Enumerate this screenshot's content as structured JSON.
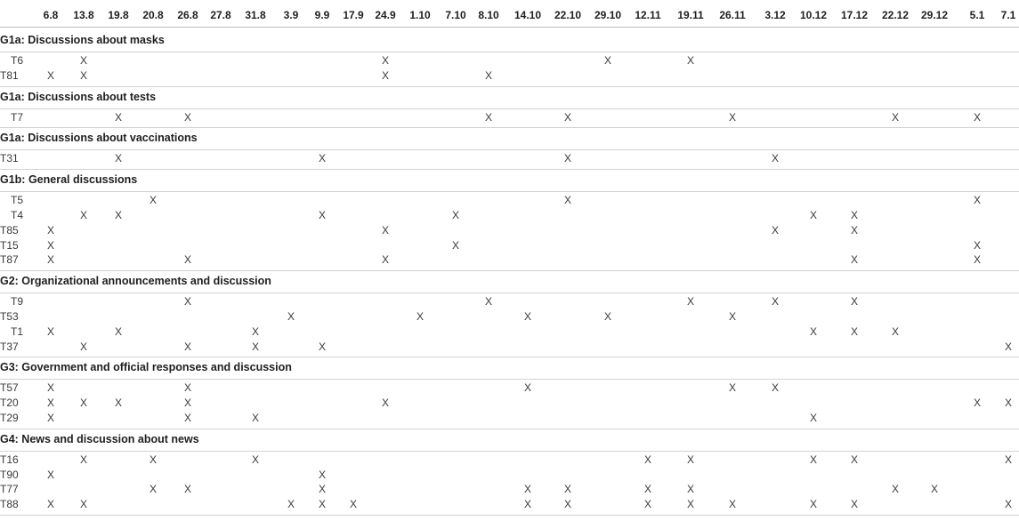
{
  "columns": [
    "6.8",
    "13.8",
    "19.8",
    "20.8",
    "26.8",
    "27.8",
    "31.8",
    "3.9",
    "9.9",
    "17.9",
    "24.9",
    "1.10",
    "7.10",
    "8.10",
    "14.10",
    "22.10",
    "29.10",
    "12.11",
    "19.11",
    "26.11",
    "3.12",
    "10.12",
    "17.12",
    "22.12",
    "29.12",
    "5.1",
    "7.1"
  ],
  "groups": [
    {
      "title": "G1a: Discussions about masks",
      "rows": [
        {
          "label": "T6",
          "marks": [
            1,
            10,
            16,
            18
          ]
        },
        {
          "label": "T81",
          "marks": [
            0,
            1,
            10,
            13
          ]
        }
      ]
    },
    {
      "title": "G1a: Discussions about tests",
      "rows": [
        {
          "label": "T7",
          "marks": [
            2,
            4,
            13,
            15,
            19,
            23,
            25
          ]
        }
      ]
    },
    {
      "title": "G1a: Discussions about vaccinations",
      "rows": [
        {
          "label": "T31",
          "marks": [
            2,
            8,
            15,
            20
          ]
        }
      ]
    },
    {
      "title": "G1b: General discussions",
      "rows": [
        {
          "label": "T5",
          "marks": [
            3,
            15,
            25
          ]
        },
        {
          "label": "T4",
          "marks": [
            1,
            2,
            8,
            12,
            21,
            22
          ]
        },
        {
          "label": "T85",
          "marks": [
            0,
            10,
            20,
            22
          ]
        },
        {
          "label": "T15",
          "marks": [
            0,
            12,
            25
          ]
        },
        {
          "label": "T87",
          "marks": [
            0,
            4,
            10,
            22,
            25
          ]
        }
      ]
    },
    {
      "title": "G2: Organizational announcements and discussion",
      "rows": [
        {
          "label": "T9",
          "marks": [
            4,
            13,
            18,
            20,
            22
          ]
        },
        {
          "label": "T53",
          "marks": [
            7,
            11,
            14,
            16,
            19
          ]
        },
        {
          "label": "T1",
          "marks": [
            0,
            2,
            6,
            21,
            22,
            23
          ]
        },
        {
          "label": "T37",
          "marks": [
            1,
            4,
            6,
            8,
            26
          ]
        }
      ]
    },
    {
      "title": "G3: Government and official responses and discussion",
      "rows": [
        {
          "label": "T57",
          "marks": [
            0,
            4,
            14,
            19,
            20
          ]
        },
        {
          "label": "T20",
          "marks": [
            0,
            1,
            2,
            4,
            10,
            25,
            26
          ]
        },
        {
          "label": "T29",
          "marks": [
            0,
            4,
            6,
            21
          ]
        }
      ]
    },
    {
      "title": "G4: News and discussion about news",
      "rows": [
        {
          "label": "T16",
          "marks": [
            1,
            3,
            6,
            17,
            18,
            21,
            22,
            26
          ]
        },
        {
          "label": "T90",
          "marks": [
            0,
            8
          ]
        },
        {
          "label": "T77",
          "marks": [
            3,
            4,
            8,
            14,
            15,
            17,
            18,
            23,
            24
          ]
        },
        {
          "label": "T88",
          "marks": [
            0,
            1,
            7,
            8,
            9,
            14,
            15,
            17,
            18,
            19,
            21,
            22,
            26
          ]
        }
      ]
    }
  ],
  "mark_symbol": "X"
}
